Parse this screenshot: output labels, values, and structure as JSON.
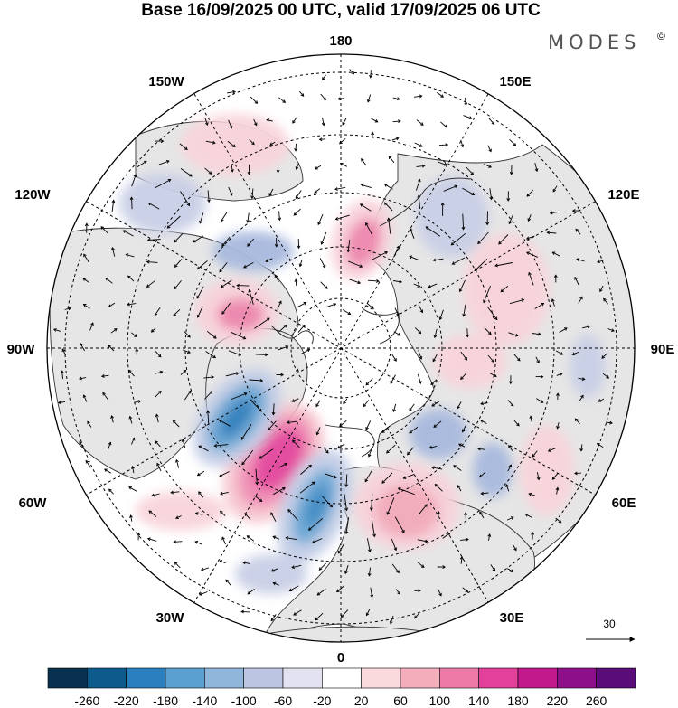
{
  "title": "Base 16/09/2025 00 UTC, valid 17/09/2025 06 UTC",
  "brand": "MODES",
  "brand_mark": "©",
  "longitude_labels": {
    "n180": "180",
    "w150": "150W",
    "e150": "150E",
    "w120": "120W",
    "e120": "120E",
    "w90": "90W",
    "e90": "90E",
    "w60": "60W",
    "e60": "60E",
    "w30": "30W",
    "e30": "30E",
    "s0": "0"
  },
  "reference_vector_label": "30",
  "colorbar": {
    "tick_labels": [
      "-260",
      "-220",
      "-180",
      "-140",
      "-100",
      "-60",
      "-20",
      "20",
      "60",
      "100",
      "140",
      "180",
      "220",
      "260"
    ],
    "colors": [
      "#08304f",
      "#0d5a8c",
      "#2a7fbf",
      "#5aa0d0",
      "#90b6dc",
      "#bcc6e2",
      "#e2e2f0",
      "#ffffff",
      "#fadadd",
      "#f3adbb",
      "#ee7aa8",
      "#e2409a",
      "#c21a8c",
      "#8e0f8a",
      "#5a0c78"
    ]
  },
  "anomaly_field": [
    {
      "sign": "positive",
      "level": 3,
      "area": "North Atlantic southeast of Greenland"
    },
    {
      "sign": "negative",
      "level": 3,
      "area": "Labrador Sea"
    },
    {
      "sign": "negative",
      "level": 3,
      "area": "Northeast Atlantic west of Europe"
    },
    {
      "sign": "positive",
      "level": 2,
      "area": "Eastern Europe"
    },
    {
      "sign": "positive",
      "level": 2,
      "area": "Northern Canada / Hudson Bay"
    },
    {
      "sign": "positive",
      "level": 2,
      "area": "Bering Strait"
    },
    {
      "sign": "positive",
      "level": 1,
      "area": "Central Siberia"
    },
    {
      "sign": "negative",
      "level": 1,
      "area": "Alaska"
    },
    {
      "sign": "negative",
      "level": 1,
      "area": "Eastern Siberia"
    },
    {
      "sign": "negative",
      "level": 1,
      "area": "Western Siberia"
    },
    {
      "sign": "negative",
      "level": 1,
      "area": "Central Asia"
    },
    {
      "sign": "positive",
      "level": 1,
      "area": "North Pacific"
    }
  ]
}
